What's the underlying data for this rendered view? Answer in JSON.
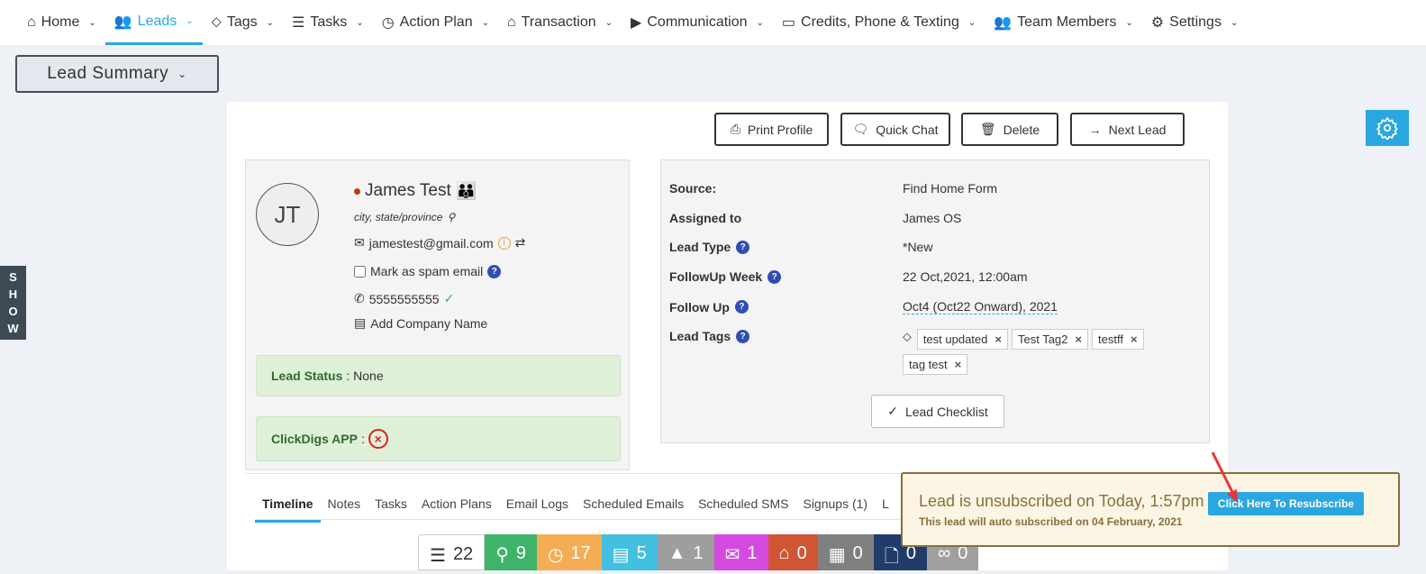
{
  "nav": [
    {
      "label": "Home",
      "icon": "home-icon"
    },
    {
      "label": "Leads",
      "icon": "users-icon",
      "active": true
    },
    {
      "label": "Tags",
      "icon": "tag-icon"
    },
    {
      "label": "Tasks",
      "icon": "list-icon"
    },
    {
      "label": "Action Plan",
      "icon": "clock-icon"
    },
    {
      "label": "Transaction",
      "icon": "house-icon"
    },
    {
      "label": "Communication",
      "icon": "video-icon"
    },
    {
      "label": "Credits, Phone & Texting",
      "icon": "card-icon"
    },
    {
      "label": "Team Members",
      "icon": "team-icon"
    },
    {
      "label": "Settings",
      "icon": "gear-icon"
    }
  ],
  "summary_label": "Lead Summary",
  "show_label": [
    "S",
    "H",
    "O",
    "W"
  ],
  "actions": {
    "print": "Print Profile",
    "chat": "Quick Chat",
    "delete": "Delete",
    "next": "Next Lead"
  },
  "lead": {
    "initials": "JT",
    "name": "James Test",
    "location": "city, state/province",
    "email": "jamestest@gmail.com",
    "spam_label": "Mark as spam email",
    "phone": "5555555555",
    "company": "Add Company Name"
  },
  "status": {
    "lead_status_label": "Lead Status",
    "lead_status_value": "None",
    "app_label": "ClickDigs APP"
  },
  "details": {
    "source_label": "Source:",
    "source": "Find Home Form",
    "assigned_label": "Assigned to",
    "assigned": "James OS",
    "type_label": "Lead Type",
    "type": "*New",
    "week_label": "FollowUp Week",
    "week": "22 Oct,2021, 12:00am",
    "followup_label": "Follow Up",
    "followup": "Oct4 (Oct22 Onward), 2021",
    "tags_label": "Lead Tags",
    "tags": [
      "test updated",
      "Test Tag2",
      "testff",
      "tag test"
    ],
    "checklist": "Lead Checklist"
  },
  "tabs": [
    "Timeline",
    "Notes",
    "Tasks",
    "Action Plans",
    "Email Logs",
    "Scheduled Emails",
    "Scheduled SMS",
    "Signups (1)",
    "L"
  ],
  "stats": [
    {
      "icon": "list-icon",
      "count": "22",
      "color": "#ffffff"
    },
    {
      "icon": "pin-icon",
      "count": "9",
      "color": "#3fb36a"
    },
    {
      "icon": "clock-icon",
      "count": "17",
      "color": "#f4ad55"
    },
    {
      "icon": "doc-icon",
      "count": "5",
      "color": "#43bfdf"
    },
    {
      "icon": "arrow-icon",
      "count": "1",
      "color": "#9e9e9e"
    },
    {
      "icon": "mail-icon",
      "count": "1",
      "color": "#d44cdf"
    },
    {
      "icon": "house-icon",
      "count": "0",
      "color": "#d15532"
    },
    {
      "icon": "calendar-icon",
      "count": "0",
      "color": "#808080"
    },
    {
      "icon": "file-icon",
      "count": "0",
      "color": "#223c6a"
    },
    {
      "icon": "link-icon",
      "count": "0",
      "color": "#a0a0a0"
    }
  ],
  "popup": {
    "title": "Lead is unsubscribed on Today, 1:57pm",
    "subtitle": "This lead will auto subscribed on 04 February, 2021",
    "button": "Click Here To Resubscribe"
  }
}
